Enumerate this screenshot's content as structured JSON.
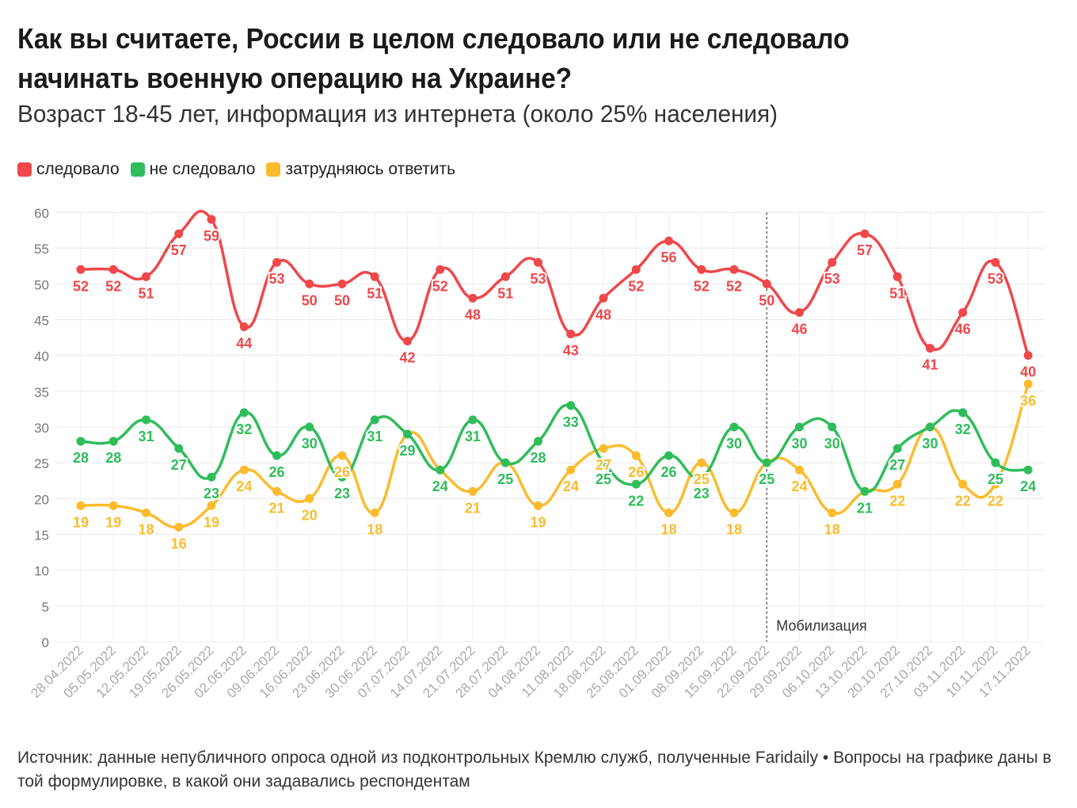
{
  "header": {
    "title": "Как вы считаете, России в целом следовало или не следовало начинать военную операцию на Украине?",
    "subtitle": "Возраст 18-45 лет, информация из интернета (около 25% населения)"
  },
  "legend": [
    {
      "label": "следовало",
      "color": "#f0474a"
    },
    {
      "label": "не следовало",
      "color": "#2fbd5b"
    },
    {
      "label": "затрудняюсь ответить",
      "color": "#fbbb2d"
    }
  ],
  "chart_data": {
    "type": "line",
    "categories": [
      "28.04.2022",
      "05.05.2022",
      "12.05.2022",
      "19.05.2022",
      "26.05.2022",
      "02.06.2022",
      "09.06.2022",
      "16.06.2022",
      "23.06.2022",
      "30.06.2022",
      "07.07.2022",
      "14.07.2022",
      "21.07.2022",
      "28.07.2022",
      "04.08.2022",
      "11.08.2022",
      "18.08.2022",
      "25.08.2022",
      "01.09.2022",
      "08.09.2022",
      "15.09.2022",
      "22.09.2022",
      "29.09.2022",
      "06.10.2022",
      "13.10.2022",
      "20.10.2022",
      "27.10.2022",
      "03.11.2022",
      "10.11.2022",
      "17.11.2022"
    ],
    "series": [
      {
        "name": "следовало",
        "color": "#f0474a",
        "values": [
          52,
          52,
          51,
          57,
          59,
          44,
          53,
          50,
          50,
          51,
          42,
          52,
          48,
          51,
          53,
          43,
          48,
          52,
          56,
          52,
          52,
          50,
          46,
          53,
          57,
          51,
          41,
          46,
          53,
          40
        ]
      },
      {
        "name": "не следовало",
        "color": "#2fbd5b",
        "values": [
          28,
          28,
          31,
          27,
          23,
          32,
          26,
          30,
          23,
          31,
          29,
          24,
          31,
          25,
          28,
          33,
          25,
          22,
          26,
          23,
          30,
          25,
          30,
          30,
          21,
          27,
          30,
          32,
          25,
          24
        ]
      },
      {
        "name": "затрудняюсь ответить",
        "color": "#fbbb2d",
        "values": [
          19,
          19,
          18,
          16,
          19,
          24,
          21,
          20,
          26,
          18,
          29,
          24,
          21,
          25,
          19,
          24,
          27,
          26,
          18,
          25,
          18,
          25,
          24,
          18,
          21,
          22,
          30,
          22,
          22,
          36
        ]
      }
    ],
    "ylim": [
      0,
      60
    ],
    "yticks": [
      0,
      5,
      10,
      15,
      20,
      25,
      30,
      35,
      40,
      45,
      50,
      55,
      60
    ],
    "annotation": {
      "label": "Мобилизация",
      "category": "22.09.2022"
    },
    "grid": true,
    "legend_position": "top-left"
  },
  "footer": {
    "source": "Источник: данные непубличного опроса одной из подконтрольных Кремлю служб, полученные Faridaily • Вопросы на графике даны в той формулировке, в какой они задавались респондентам"
  }
}
